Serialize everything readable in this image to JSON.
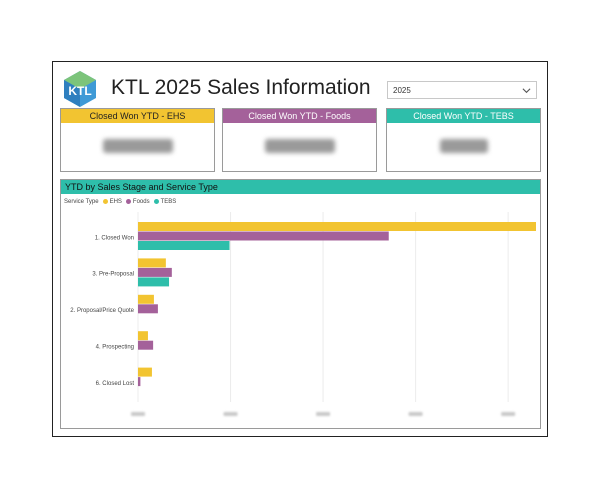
{
  "title": "KTL 2025 Sales Information",
  "logo_text": "KTL",
  "year_filter": {
    "value": "2025",
    "icon": "chevron-down-icon"
  },
  "cards": [
    {
      "label": "Closed Won YTD - EHS",
      "color": "#f2c431"
    },
    {
      "label": "Closed Won YTD - Foods",
      "color": "#a4619a"
    },
    {
      "label": "Closed Won YTD - TEBS",
      "color": "#2ebeaa"
    }
  ],
  "chart_data": {
    "type": "bar",
    "orientation": "horizontal",
    "title": "YTD by Sales Stage and Service Type",
    "legend_title": "Service Type",
    "legend_position": "top-left",
    "categories": [
      "1. Closed Won",
      "3. Pre-Proposal",
      "2. Proposal/Price Quote",
      "4. Prospecting",
      "6. Closed Lost"
    ],
    "series": [
      {
        "name": "EHS",
        "color": "#f2c431",
        "values": [
          100,
          7,
          4,
          2.5,
          3.5
        ]
      },
      {
        "name": "Foods",
        "color": "#a4619a",
        "values": [
          63,
          8.5,
          5,
          3.8,
          0.6
        ]
      },
      {
        "name": "TEBS",
        "color": "#2ebeaa",
        "values": [
          23,
          7.8,
          0,
          0,
          0
        ]
      }
    ],
    "xlim": [
      0,
      100
    ],
    "grid": true
  }
}
